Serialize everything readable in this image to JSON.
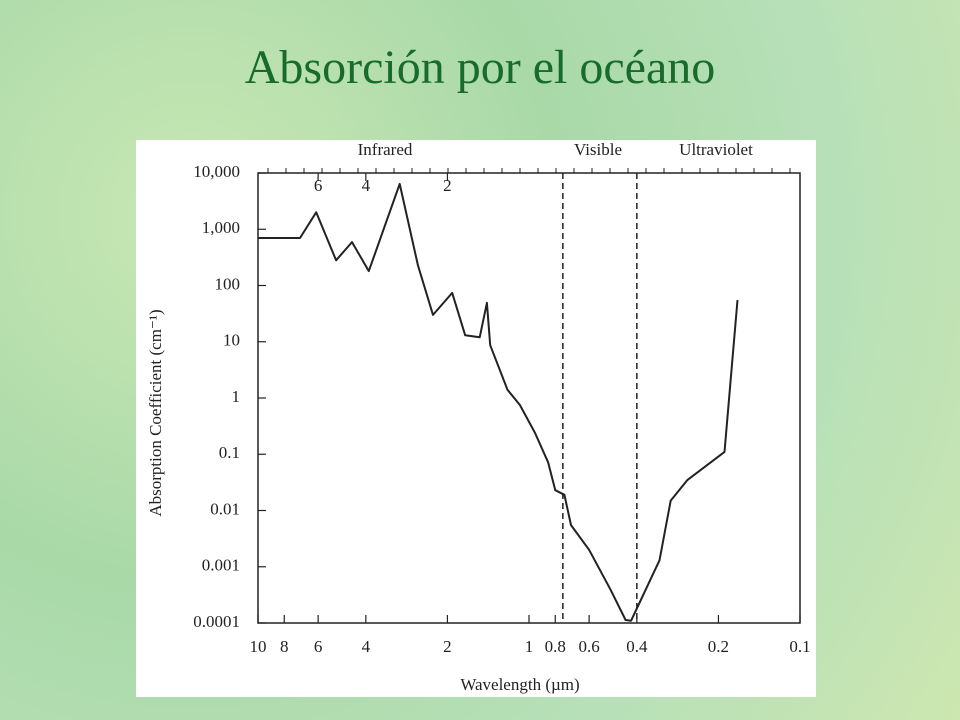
{
  "title": "Absorción por el océano",
  "chart_data": {
    "type": "line",
    "x_label": "Wavelength (µm)",
    "y_label": "Absorption Coefficient (cm⁻¹)",
    "x_scale": "log",
    "y_scale": "log",
    "xlim": [
      10,
      0.1
    ],
    "ylim": [
      0.0001,
      10000
    ],
    "xticks": [
      10,
      8,
      6,
      4,
      2,
      1,
      0.8,
      0.6,
      0.4,
      0.2,
      0.1
    ],
    "yticks": [
      0.0001,
      0.001,
      0.01,
      0.1,
      1,
      10,
      100,
      {
        "value": 1000,
        "label": "1,000"
      },
      {
        "value": 10000,
        "label": "10,000"
      }
    ],
    "x2ticks": [
      6,
      4,
      2
    ],
    "region_labels": [
      "Infrared",
      "Visible",
      "Ultraviolet"
    ],
    "vlines": [
      0.75,
      0.4
    ],
    "series": [
      {
        "color": "#222222",
        "x": [
          10,
          7.0,
          6.1,
          5.15,
          4.5,
          3.9,
          3.0,
          2.57,
          2.26,
          1.92,
          1.72,
          1.52,
          1.43,
          1.39,
          1.2,
          1.08,
          0.95,
          0.85,
          0.8,
          0.74,
          0.7,
          0.6,
          0.5,
          0.44,
          0.42,
          0.33,
          0.3,
          0.26,
          0.19,
          0.17
        ],
        "values": [
          700,
          700,
          2000,
          280,
          590,
          180,
          6400,
          230,
          30,
          74,
          13,
          12,
          49,
          8.7,
          1.4,
          0.75,
          0.24,
          0.072,
          0.023,
          0.019,
          0.0055,
          0.002,
          0.00039,
          0.000113,
          0.00011,
          0.0013,
          0.015,
          0.035,
          0.11,
          55
        ]
      }
    ]
  }
}
